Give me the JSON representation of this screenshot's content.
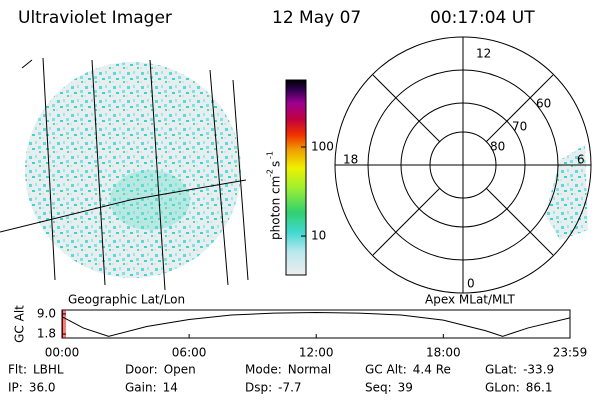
{
  "header": {
    "title": "Ultraviolet Imager",
    "date": "12 May 07",
    "time": "00:17:04 UT"
  },
  "left_panel": {
    "label": "Geographic Lat/Lon"
  },
  "right_panel": {
    "label": "Apex MLat/MLT",
    "mlt_labels": [
      "12",
      "6",
      "0",
      "18"
    ],
    "lat_labels": [
      "60",
      "70",
      "80"
    ]
  },
  "colorbar": {
    "label": "photon cm",
    "exp1": "-2",
    "unit2": "s",
    "exp2": "-1",
    "lim": [
      3.65,
      566
    ],
    "ticks": [
      10,
      100
    ],
    "log": true
  },
  "chart_data": {
    "type": "line",
    "ylabel": "GC Alt",
    "x": [
      0,
      1,
      2.2,
      4,
      6,
      8,
      10,
      12,
      14,
      16,
      18,
      20,
      20.8,
      22,
      23.98
    ],
    "values": [
      8.0,
      4.0,
      1.0,
      4.5,
      7.0,
      8.6,
      9.3,
      9.5,
      9.3,
      8.6,
      6.8,
      3.0,
      1.0,
      4.0,
      7.6
    ],
    "color": "#000000",
    "xlim": [
      0,
      23.98
    ],
    "xticks": [
      {
        "value": 0,
        "label": "00:00"
      },
      {
        "value": 6,
        "label": "06:00"
      },
      {
        "value": 12,
        "label": "12:00"
      },
      {
        "value": 18,
        "label": "18:00"
      },
      {
        "value": 23.98,
        "label": "23:59"
      }
    ],
    "ylim": [
      0.4,
      10.4
    ],
    "yticks": [
      {
        "value": 1.8,
        "label": "1.8"
      },
      {
        "value": 9.0,
        "label": "9.0"
      }
    ]
  },
  "footer": {
    "rows": [
      [
        [
          "Flt:",
          "LBHL"
        ],
        [
          "Door:",
          "Open"
        ],
        [
          "Mode:",
          "Normal"
        ],
        [
          "GC Alt:",
          "4.4 Re"
        ],
        [
          "GLat:",
          "-33.9"
        ]
      ],
      [
        [
          "IP:",
          "36.0"
        ],
        [
          "Gain:",
          "14"
        ],
        [
          "Dsp:",
          "-7.7"
        ],
        [
          "Seq:",
          "39"
        ],
        [
          "GLon:",
          "86.1"
        ]
      ]
    ]
  }
}
